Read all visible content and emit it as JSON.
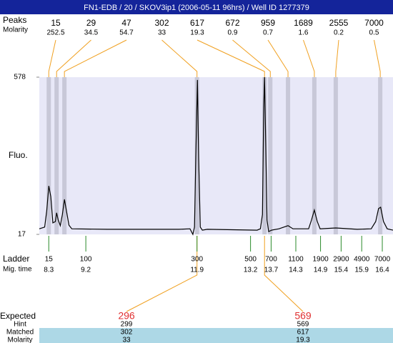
{
  "chart_data": {
    "type": "electropherogram",
    "title": "FN1-EDB / 20 / SKOV3ip1 (2006-05-11 96hrs) / Well ID 1277379",
    "ylabel": "Fluo.",
    "xlim": [
      8.07,
      16.66
    ],
    "ylim": [
      17,
      578
    ],
    "yticks": [
      17,
      578
    ],
    "trace": {
      "color": "#000000",
      "x": [
        8.07,
        8.2,
        8.25,
        8.3,
        8.35,
        8.4,
        8.46,
        8.49,
        8.53,
        8.58,
        8.63,
        8.68,
        8.73,
        8.79,
        8.86,
        9.72,
        11.46,
        11.73,
        11.8,
        11.84,
        11.87,
        11.91,
        11.94,
        11.98,
        12.03,
        12.15,
        13.36,
        13.44,
        13.49,
        13.52,
        13.54,
        13.57,
        13.6,
        13.64,
        13.71,
        13.89,
        14.11,
        14.23,
        14.61,
        14.68,
        14.75,
        14.82,
        14.89,
        15.27,
        15.79,
        16.13,
        16.24,
        16.31,
        16.36,
        16.43,
        16.52,
        16.66
      ],
      "y": [
        37,
        43,
        101,
        190,
        152,
        58,
        63,
        94,
        68,
        48,
        88,
        142,
        101,
        50,
        37,
        35,
        35,
        37,
        17,
        43,
        292,
        568,
        292,
        43,
        32,
        35,
        32,
        37,
        88,
        471,
        578,
        343,
        68,
        27,
        32,
        37,
        48,
        37,
        37,
        68,
        104,
        63,
        37,
        40,
        35,
        37,
        63,
        109,
        114,
        63,
        37,
        32
      ]
    },
    "peaks": {
      "size_label": "Peaks",
      "molarity_label": "Molarity",
      "sizes": [
        15,
        29,
        47,
        302,
        617,
        672,
        959,
        1689,
        2555,
        7000
      ],
      "molarity": [
        252.5,
        34.5,
        54.7,
        33,
        19.3,
        0.9,
        0.7,
        1.6,
        0.2,
        0.5
      ],
      "migration_times": [
        8.3,
        8.49,
        8.68,
        11.9,
        13.54,
        13.68,
        14.11,
        14.75,
        15.27,
        16.35
      ]
    },
    "ladder": {
      "label": "Ladder",
      "time_label": "Mig. time",
      "sizes": [
        15,
        100,
        300,
        500,
        700,
        1100,
        1900,
        2900,
        4900,
        7000
      ],
      "migration_times": [
        8.3,
        9.2,
        11.9,
        13.2,
        13.7,
        14.3,
        14.9,
        15.4,
        15.9,
        16.4
      ]
    },
    "expected": {
      "labels": [
        "Expected",
        "Hint",
        "Matched",
        "Molarity"
      ],
      "expected": [
        296,
        569
      ],
      "hint": [
        299,
        569
      ],
      "matched": [
        302,
        617
      ],
      "molarity": [
        33,
        19.3
      ]
    }
  }
}
